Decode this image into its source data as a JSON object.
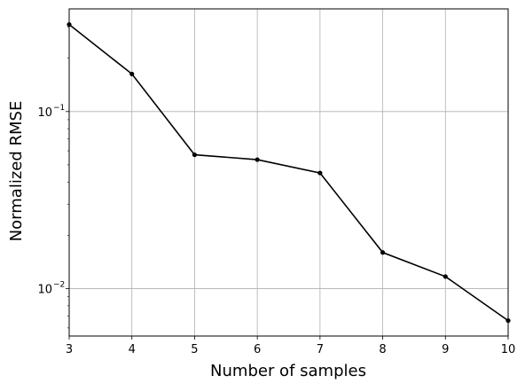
{
  "chart_data": {
    "type": "line",
    "title": "",
    "xlabel": "Number of samples",
    "ylabel": "Normalized RMSE",
    "x": [
      3,
      4,
      5,
      6,
      7,
      8,
      9,
      10
    ],
    "series": [
      {
        "values": [
          0.31,
          0.163,
          0.057,
          0.0535,
          0.045,
          0.016,
          0.0117,
          0.0066
        ],
        "color": "#000000",
        "marker": "circle"
      }
    ],
    "xlim": [
      3,
      10
    ],
    "ylim": [
      0.0054,
      0.38
    ],
    "yscale": "log",
    "xticks": [
      "3",
      "4",
      "5",
      "6",
      "7",
      "8",
      "9",
      "10"
    ],
    "yticks": [
      {
        "value": 0.01,
        "base": "10",
        "exp": "−2"
      },
      {
        "value": 0.1,
        "base": "10",
        "exp": "−1"
      }
    ],
    "grid": true,
    "legend": "none"
  }
}
